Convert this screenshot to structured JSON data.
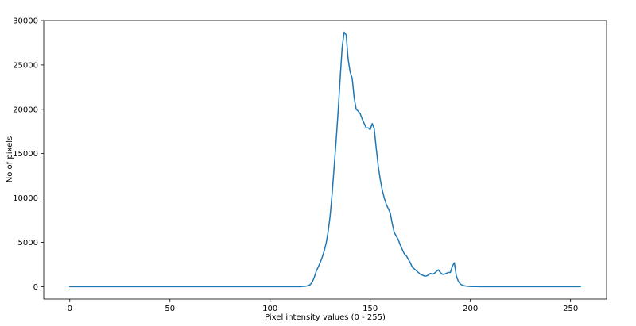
{
  "chart_data": {
    "type": "line",
    "title": "",
    "xlabel": "Pixel intensity values (0 - 255)",
    "ylabel": "No of pixels",
    "xlim": [
      -13,
      268
    ],
    "ylim": [
      -1400,
      30000
    ],
    "grid": false,
    "legend": "none",
    "x_ticks": [
      0,
      50,
      100,
      150,
      200,
      250
    ],
    "x_tick_labels": [
      "0",
      "50",
      "100",
      "150",
      "200",
      "250"
    ],
    "y_ticks": [
      0,
      5000,
      10000,
      15000,
      20000,
      25000,
      30000
    ],
    "y_tick_labels": [
      "0",
      "5000",
      "10000",
      "15000",
      "20000",
      "25000",
      "30000"
    ],
    "line_color": "#1f77b4",
    "series": [
      {
        "x": [
          0,
          100,
          115,
          118,
          120,
          121,
          122,
          123,
          124,
          125,
          126,
          127,
          128,
          129,
          130,
          131,
          132,
          133,
          134,
          135,
          136,
          137,
          138,
          139,
          140,
          141,
          142,
          143,
          144,
          145,
          146,
          147,
          148,
          149,
          150,
          151,
          152,
          153,
          154,
          155,
          156,
          157,
          158,
          159,
          160,
          161,
          162,
          163,
          164,
          165,
          166,
          167,
          168,
          169,
          170,
          171,
          172,
          173,
          174,
          175,
          176,
          177,
          178,
          179,
          180,
          181,
          182,
          183,
          184,
          185,
          186,
          187,
          188,
          189,
          190,
          191,
          192,
          193,
          194,
          195,
          196,
          197,
          198,
          199,
          200,
          201,
          202,
          203,
          205,
          210,
          220,
          255
        ],
        "y": [
          0,
          0,
          0,
          50,
          200,
          500,
          1000,
          1700,
          2200,
          2700,
          3300,
          4000,
          4900,
          6200,
          8000,
          10500,
          13500,
          16500,
          19800,
          23500,
          27000,
          28700,
          28400,
          25600,
          24200,
          23500,
          21300,
          20000,
          19800,
          19500,
          18900,
          18400,
          17900,
          17900,
          17700,
          18400,
          17800,
          15600,
          13600,
          12100,
          10900,
          10000,
          9300,
          8800,
          8300,
          7100,
          6100,
          5700,
          5300,
          4700,
          4200,
          3700,
          3500,
          3100,
          2700,
          2200,
          2000,
          1800,
          1600,
          1400,
          1300,
          1200,
          1200,
          1300,
          1500,
          1400,
          1500,
          1700,
          1900,
          1600,
          1400,
          1400,
          1500,
          1600,
          1600,
          2300,
          2700,
          1200,
          600,
          300,
          150,
          100,
          50,
          30,
          20,
          10,
          10,
          5,
          0,
          0,
          0,
          0
        ]
      }
    ]
  }
}
